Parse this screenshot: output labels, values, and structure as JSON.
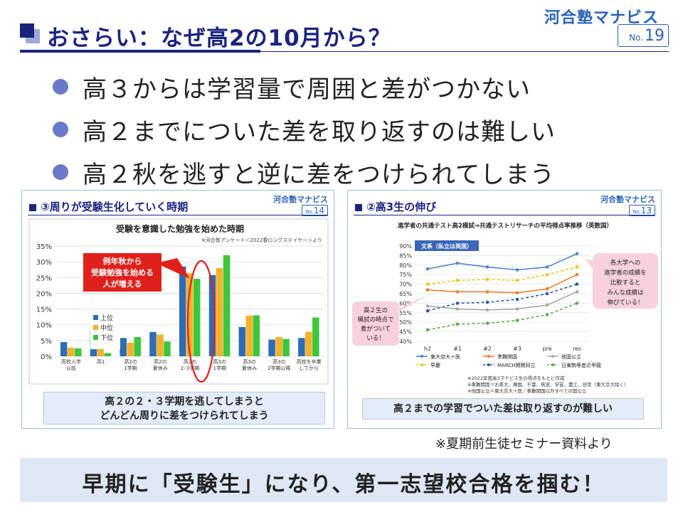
{
  "header": {
    "title": "おさらい：なぜ高2の10月から？",
    "brand": "河合塾マナビス",
    "page_prefix": "No.",
    "page_number": "19"
  },
  "bullets": [
    "高３からは学習量で周囲と差がつかない",
    "高２までについた差を取り返すのは難しい",
    "高２秋を逃すと逆に差をつけられてしまう"
  ],
  "panel_left": {
    "heading": "③周りが受験生化していく時期",
    "brand": "河合塾マナビス",
    "page_prefix": "No.",
    "page_number": "14",
    "caption_line1": "高２の２・３学期を逃してしまうと",
    "caption_line2": "どんどん周りに差をつけられてしまう",
    "callout": [
      "例年秋から",
      "受験勉強を始める",
      "人が増える"
    ]
  },
  "panel_right": {
    "heading": "②高3生の伸び",
    "brand": "河合塾マナビス",
    "page_prefix": "No.",
    "page_number": "13",
    "caption": "高２までの学習でついた差は取り返すのが難しい",
    "callout_left": [
      "高２生の",
      "模試の時点で",
      "差がついて",
      "いる！"
    ],
    "callout_right": [
      "各大学への",
      "進学者の成績を",
      "比較すると",
      "みんな成績は",
      "伸びている！"
    ],
    "notes": [
      "※2022年度高3マナビス生の得点をもとに作成",
      "※準難関国＝お茶大、横国、千葉、筑波、学芸、農工、旧帝（東大京大除く）",
      "※他国公立＝東大京大＋医／準難関国以外すべての国公立"
    ]
  },
  "source_note": "※夏期前生徒セミナー資料より",
  "bottom_message": "早期に「受験生」になり、第一志望校合格を掴む！",
  "chart_data": [
    {
      "type": "bar",
      "title": "受験を意識した勉強を始めた時期",
      "subtitle": "※河合塾アンケート＜2022春ロングステイヤー＞より",
      "categories": [
        [
          "高校入学",
          "以前"
        ],
        [
          "高1"
        ],
        [
          "高2の",
          "1学期"
        ],
        [
          "高2の",
          "夏休み"
        ],
        [
          "高2の",
          "2･3学期"
        ],
        [
          "高3の",
          "1学期"
        ],
        [
          "高3の",
          "夏休み"
        ],
        [
          "高3の",
          "2学期以降"
        ],
        [
          "高校を卒業",
          "してから"
        ]
      ],
      "series": [
        {
          "name": "上位",
          "color": "#2e6db5",
          "values": [
            4.5,
            8.5,
            5.8,
            7.7,
            28.5,
            25.8,
            9.3,
            5.3,
            5.8
          ]
        },
        {
          "name": "中位",
          "color": "#f3b22a",
          "values": [
            2.7,
            6.1,
            4.3,
            6.9,
            26.4,
            28.0,
            12.9,
            6.1,
            7.8
          ]
        },
        {
          "name": "下位",
          "color": "#3cc63c",
          "values": [
            2.5,
            1.0,
            6.1,
            4.7,
            24.6,
            32.1,
            13.0,
            5.5,
            12.3
          ]
        }
      ],
      "y_ticks": [
        "0%",
        "5%",
        "10%",
        "15%",
        "20%",
        "25%",
        "30%",
        "35%"
      ],
      "ylim": [
        0,
        35
      ],
      "legend": "upper-left",
      "grid": true
    },
    {
      "type": "line",
      "title": "進学者の共通テスト高2模試⇒共通テストリサーチの平均得点率推移（英数国）",
      "box_label": "文系（私立は英国）",
      "x": [
        "h2",
        "#1",
        "#2",
        "#3",
        "pre",
        "res"
      ],
      "y_ticks": [
        "40%",
        "45%",
        "50%",
        "55%",
        "60%",
        "65%",
        "70%",
        "75%",
        "80%",
        "85%",
        "90%"
      ],
      "ylim": [
        40,
        90
      ],
      "series": [
        {
          "name": "東大京大＋医",
          "color": "#4a86d0",
          "dash": false,
          "values": [
            78,
            81,
            79,
            77.5,
            79,
            86
          ]
        },
        {
          "name": "早慶",
          "color": "#f5c21b",
          "dash": true,
          "values": [
            70,
            72,
            72.5,
            72,
            75,
            79
          ]
        },
        {
          "name": "準難関国",
          "color": "#ef7d31",
          "dash": false,
          "values": [
            67,
            66,
            66,
            65.5,
            67.5,
            75
          ]
        },
        {
          "name": "MARCH関関同立",
          "color": "#2a5aa8",
          "dash": true,
          "values": [
            56,
            60,
            60.5,
            62,
            65,
            70
          ]
        },
        {
          "name": "他国公立",
          "color": "#a6a6a6",
          "dash": false,
          "values": [
            58.5,
            57,
            56.5,
            57,
            59,
            66
          ]
        },
        {
          "name": "日東駒専産近甲龍",
          "color": "#5ab04a",
          "dash": true,
          "values": [
            46,
            49,
            49.5,
            51,
            54,
            60
          ]
        }
      ],
      "legend": "bottom",
      "grid": true
    }
  ]
}
